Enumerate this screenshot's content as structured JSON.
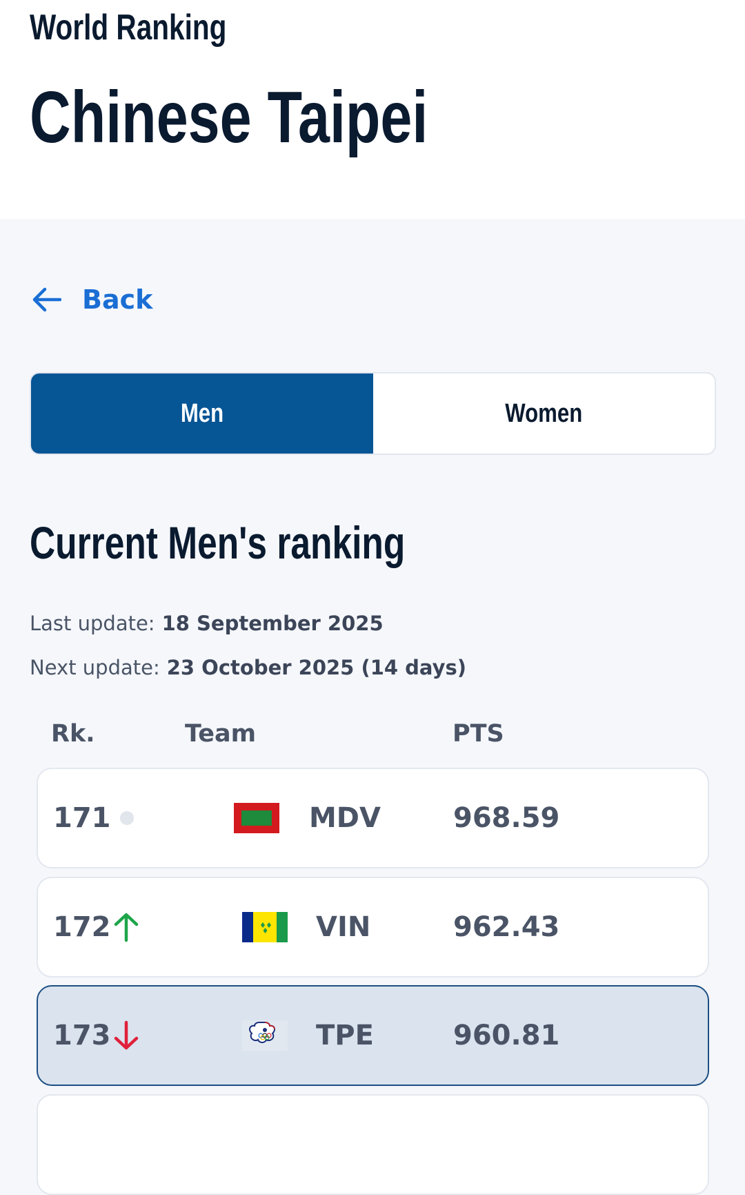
{
  "header": {
    "supertitle": "World Ranking",
    "title": "Chinese Taipei"
  },
  "back_label": "Back",
  "tabs": [
    {
      "label": "Men",
      "active": true
    },
    {
      "label": "Women",
      "active": false
    }
  ],
  "section_title": "Current Men's ranking",
  "last_update": {
    "label": "Last update:",
    "value": "18 September 2025"
  },
  "next_update": {
    "label": "Next update:",
    "value": "23 October 2025 (14 days)"
  },
  "columns": {
    "rank": "Rk.",
    "team": "Team",
    "points": "PTS"
  },
  "rows": [
    {
      "rank": "171",
      "trend": "same",
      "flag": "maldives-flag",
      "code": "MDV",
      "points": "968.59"
    },
    {
      "rank": "172",
      "trend": "up",
      "flag": "saint-vincent-flag",
      "code": "VIN",
      "points": "962.43"
    },
    {
      "rank": "173",
      "trend": "down",
      "flag": "chinese-taipei-olympic-flag",
      "code": "TPE",
      "points": "960.81",
      "highlighted": true
    }
  ],
  "colors": {
    "accent": "#065595",
    "link": "#1a6ed4",
    "up": "#1ea54a",
    "down": "#e0203a"
  }
}
